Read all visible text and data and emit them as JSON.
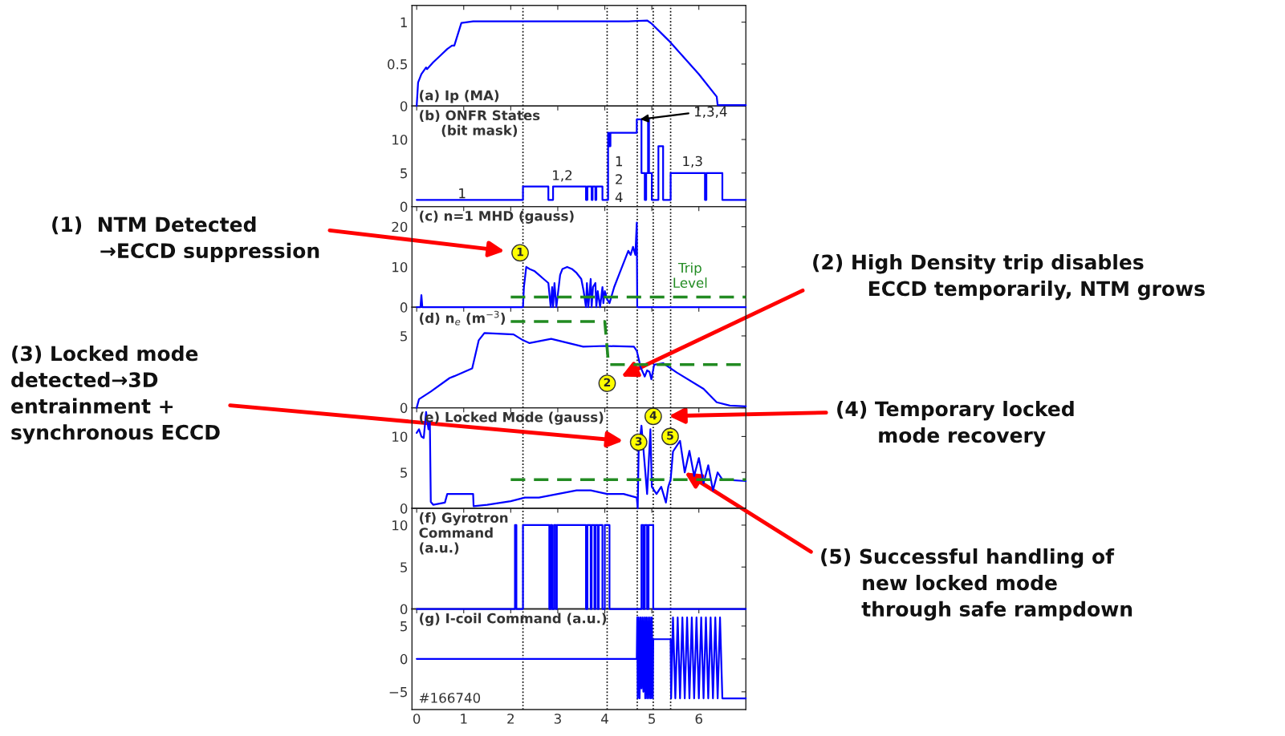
{
  "chart_data": [
    {
      "type": "line",
      "title": "(a) Ip (MA)",
      "xlim": [
        -0.1,
        7
      ],
      "xticks": [
        0,
        1,
        2,
        3,
        4,
        5,
        6
      ],
      "ylim": [
        0,
        1.2
      ],
      "yticks": [
        0,
        0.5,
        1
      ],
      "tick_labels": "y",
      "series": [
        {
          "color": "#0000ff",
          "x": [
            0,
            0.03,
            0.1,
            0.2,
            0.22,
            0.35,
            0.5,
            0.65,
            0.75,
            0.8,
            0.95,
            1.2,
            2.0,
            3.0,
            4.0,
            4.5,
            4.9,
            5.0,
            5.36,
            6.0,
            6.38,
            6.4,
            6.5,
            7.0
          ],
          "values": [
            0,
            0.28,
            0.38,
            0.46,
            0.44,
            0.52,
            0.6,
            0.68,
            0.72,
            0.72,
            0.99,
            1.01,
            1.01,
            1.01,
            1.01,
            1.01,
            1.02,
            0.98,
            0.78,
            0.38,
            0.11,
            0.01,
            0.01,
            0.01
          ]
        }
      ],
      "ref_lines": [
        {
          "axis": "x",
          "value": 2.26,
          "color": "#000000",
          "line_style": "dotted"
        },
        {
          "axis": "x",
          "value": 4.05,
          "color": "#000000",
          "line_style": "dotted"
        },
        {
          "axis": "x",
          "value": 4.69,
          "color": "#000000",
          "line_style": "dotted"
        },
        {
          "axis": "x",
          "value": 5.03,
          "color": "#000000",
          "line_style": "dotted"
        },
        {
          "axis": "x",
          "value": 5.4,
          "color": "#000000",
          "line_style": "dotted"
        }
      ]
    },
    {
      "type": "line",
      "title": "(b) ONFR States\n(bit mask)",
      "xlim": [
        -0.1,
        7
      ],
      "xticks": [
        0,
        1,
        2,
        3,
        4,
        5,
        6
      ],
      "ylim": [
        0,
        15
      ],
      "yticks": [
        0,
        5,
        10
      ],
      "tick_labels": "y",
      "series": [
        {
          "type": "step",
          "color": "#0000ff",
          "x": [
            0,
            2.26,
            2.8,
            2.9,
            3.6,
            3.63,
            3.72,
            3.74,
            3.8,
            3.82,
            3.95,
            4.07,
            4.09,
            4.12,
            4.68,
            4.78,
            4.85,
            4.88,
            4.92,
            4.94,
            4.97,
            5.0,
            5.14,
            5.24,
            5.4,
            6.13,
            6.16,
            6.5,
            7.0
          ],
          "values": [
            1,
            3,
            1,
            3,
            1,
            3,
            1,
            3,
            1,
            3,
            1,
            11,
            9,
            11,
            13,
            5,
            1,
            5,
            13,
            5,
            5,
            1,
            9,
            1,
            5,
            1,
            5,
            1,
            1
          ]
        }
      ],
      "ref_lines": [
        {
          "axis": "x",
          "value": 2.26,
          "color": "#000000",
          "line_style": "dotted"
        },
        {
          "axis": "x",
          "value": 4.05,
          "color": "#000000",
          "line_style": "dotted"
        },
        {
          "axis": "x",
          "value": 4.69,
          "color": "#000000",
          "line_style": "dotted"
        },
        {
          "axis": "x",
          "value": 5.03,
          "color": "#000000",
          "line_style": "dotted"
        },
        {
          "axis": "x",
          "value": 5.4,
          "color": "#000000",
          "line_style": "dotted"
        }
      ],
      "annotations": [
        "1",
        "1,2",
        "1\n2\n4",
        "1,3",
        {
          "text": "1,3,4",
          "x": 4.75,
          "y": 13
        }
      ]
    },
    {
      "type": "line",
      "title": "(c) n=1 MHD (gauss)",
      "xlim": [
        -0.1,
        7
      ],
      "xticks": [
        0,
        1,
        2,
        3,
        4,
        5,
        6
      ],
      "ylim": [
        0,
        25
      ],
      "yticks": [
        0,
        10,
        20
      ],
      "tick_labels": "y",
      "series": [
        {
          "color": "#0000ff",
          "x": [
            0,
            0.08,
            0.1,
            0.12,
            0.14,
            2.26,
            2.28,
            2.33,
            2.4,
            2.5,
            2.6,
            2.7,
            2.8,
            2.85,
            2.88,
            2.9,
            2.93,
            2.97,
            3.05,
            3.1,
            3.2,
            3.3,
            3.4,
            3.5,
            3.55,
            3.6,
            3.62,
            3.65,
            3.7,
            3.72,
            3.75,
            3.8,
            3.82,
            3.85,
            3.9,
            3.95,
            3.97,
            4.0,
            4.05,
            4.1,
            4.2,
            4.3,
            4.4,
            4.5,
            4.55,
            4.6,
            4.65,
            4.68,
            4.69,
            4.7,
            7.0
          ],
          "values": [
            0,
            0,
            3,
            0,
            0,
            0,
            5,
            10,
            9.5,
            9,
            8,
            7,
            6,
            0,
            5,
            0,
            6,
            0,
            8,
            9.5,
            10,
            9.5,
            8.5,
            7,
            4,
            0,
            6,
            0,
            7,
            0,
            5,
            6,
            0,
            4,
            0,
            5,
            1,
            4,
            2,
            1,
            5,
            8,
            11,
            14,
            13,
            15,
            13,
            21,
            0,
            0,
            0
          ]
        },
        {
          "name": "Trip\nLevel",
          "color": "#228b22",
          "line_style": "dashed",
          "x": [
            2.0,
            7.0
          ],
          "values": [
            2.5,
            2.5
          ]
        }
      ],
      "ref_lines": [
        {
          "axis": "x",
          "value": 2.26,
          "color": "#000000",
          "line_style": "dotted"
        },
        {
          "axis": "x",
          "value": 4.05,
          "color": "#000000",
          "line_style": "dotted"
        },
        {
          "axis": "x",
          "value": 4.69,
          "color": "#000000",
          "line_style": "dotted"
        },
        {
          "axis": "x",
          "value": 5.03,
          "color": "#000000",
          "line_style": "dotted"
        },
        {
          "axis": "x",
          "value": 5.4,
          "color": "#000000",
          "line_style": "dotted"
        }
      ],
      "annotations": [
        "(1)  NTM Detected\n       →ECCD suppression",
        {
          "text": "1",
          "x": 2.2,
          "y": 13.5
        }
      ]
    },
    {
      "type": "line",
      "title": "(d) n$_{e}$ (m$^{−3}$)",
      "xlim": [
        -0.1,
        7
      ],
      "xticks": [
        0,
        1,
        2,
        3,
        4,
        5,
        6
      ],
      "ylim": [
        0,
        7
      ],
      "yticks": [
        0,
        5
      ],
      "tick_labels": "y",
      "series": [
        {
          "color": "#0000ff",
          "x": [
            0,
            0.05,
            0.3,
            0.7,
            0.8,
            1.18,
            1.32,
            1.44,
            2.06,
            2.26,
            2.4,
            2.86,
            3.54,
            4.0,
            4.62,
            4.68,
            4.76,
            4.85,
            4.9,
            4.95,
            4.99,
            5.05,
            5.24,
            5.53,
            6.1,
            6.38,
            6.66,
            7.0
          ],
          "values": [
            0,
            0.6,
            1.13,
            2.07,
            2.2,
            2.74,
            4.7,
            5.2,
            5.1,
            4.7,
            4.5,
            4.8,
            4.25,
            4.3,
            4.25,
            3.96,
            2.83,
            2.17,
            2.6,
            2.5,
            1.98,
            3.0,
            3.1,
            2.45,
            1.32,
            0.38,
            0.15,
            0.1
          ]
        },
        {
          "color": "#228b22",
          "line_style": "dashed",
          "x": [
            2.0,
            4.0,
            4.08,
            7.0
          ],
          "values": [
            6.0,
            6.0,
            3.0,
            3.0
          ]
        }
      ],
      "ref_lines": [
        {
          "axis": "x",
          "value": 2.26,
          "color": "#000000",
          "line_style": "dotted"
        },
        {
          "axis": "x",
          "value": 4.05,
          "color": "#000000",
          "line_style": "dotted"
        },
        {
          "axis": "x",
          "value": 4.69,
          "color": "#000000",
          "line_style": "dotted"
        },
        {
          "axis": "x",
          "value": 5.03,
          "color": "#000000",
          "line_style": "dotted"
        },
        {
          "axis": "x",
          "value": 5.4,
          "color": "#000000",
          "line_style": "dotted"
        }
      ],
      "annotations": [
        "(2) High Density trip disables\n        ECCD temporarily, NTM grows",
        {
          "text": "2",
          "x": 4.05,
          "y": 1.7
        }
      ]
    },
    {
      "type": "line",
      "title": "(e) Locked Mode (gauss)",
      "xlim": [
        -0.1,
        7
      ],
      "xticks": [
        0,
        1,
        2,
        3,
        4,
        5,
        6
      ],
      "ylim": [
        0,
        14
      ],
      "yticks": [
        0,
        5,
        10
      ],
      "tick_labels": "y",
      "series": [
        {
          "color": "#0000ff",
          "x": [
            0,
            0.05,
            0.1,
            0.15,
            0.2,
            0.25,
            0.28,
            0.3,
            0.35,
            0.6,
            0.65,
            1.2,
            1.21,
            1.5,
            2.0,
            2.3,
            2.6,
            3.0,
            3.4,
            3.7,
            4.05,
            4.4,
            4.68,
            4.7,
            4.72,
            4.78,
            4.85,
            4.9,
            4.97,
            5.0,
            5.1,
            5.2,
            5.3,
            5.35,
            5.4,
            5.45,
            5.6,
            5.7,
            5.8,
            5.9,
            6.0,
            6.1,
            6.2,
            6.3,
            6.4,
            6.5,
            7.0
          ],
          "values": [
            10.5,
            11,
            10,
            9.8,
            13.4,
            11,
            12,
            0.9,
            0.5,
            0.8,
            2.0,
            2.0,
            0.3,
            0.5,
            1.0,
            1.5,
            1.5,
            2.0,
            2.5,
            2.5,
            2.0,
            2.0,
            1.5,
            0,
            8.1,
            11.5,
            6,
            2,
            11,
            3,
            2,
            3,
            0.8,
            3,
            4,
            7.9,
            9.4,
            5,
            8,
            4.5,
            7,
            3.5,
            6,
            2.5,
            5,
            4,
            3.8
          ]
        },
        {
          "color": "#228b22",
          "line_style": "dashed",
          "x": [
            2.0,
            7.0
          ],
          "values": [
            4,
            4
          ]
        }
      ],
      "ref_lines": [
        {
          "axis": "x",
          "value": 2.26,
          "color": "#000000",
          "line_style": "dotted"
        },
        {
          "axis": "x",
          "value": 4.05,
          "color": "#000000",
          "line_style": "dotted"
        },
        {
          "axis": "x",
          "value": 4.69,
          "color": "#000000",
          "line_style": "dotted"
        },
        {
          "axis": "x",
          "value": 5.03,
          "color": "#000000",
          "line_style": "dotted"
        },
        {
          "axis": "x",
          "value": 5.4,
          "color": "#000000",
          "line_style": "dotted"
        }
      ],
      "annotations": [
        "(3) Locked mode\ndetected→3D\nentrainment +\nsynchronous ECCD",
        "(4) Temporary locked\n      mode recovery",
        {
          "text": "(5) Successful handling of\n      new locked mode\n      through safe rampdown",
          "x": 5.7,
          "y": 5
        },
        {
          "text": "3",
          "x": 4.72,
          "y": 9.2
        },
        {
          "text": "4",
          "x": 5.03,
          "y": 12.8
        },
        {
          "text": "5",
          "x": 5.39,
          "y": 10
        }
      ]
    },
    {
      "type": "line",
      "title": "(f) Gyrotron\nCommand\n(a.u.)",
      "xlim": [
        -0.1,
        7
      ],
      "xticks": [
        0,
        1,
        2,
        3,
        4,
        5,
        6
      ],
      "ylim": [
        0,
        12
      ],
      "yticks": [
        0,
        5,
        10
      ],
      "tick_labels": "y",
      "series": [
        {
          "type": "step",
          "color": "#0000ff",
          "x": [
            0,
            2.09,
            2.12,
            2.26,
            2.82,
            2.85,
            2.88,
            2.92,
            2.96,
            2.98,
            3.6,
            3.63,
            3.7,
            3.72,
            3.78,
            3.8,
            3.85,
            3.87,
            3.95,
            4.0,
            4.1,
            4.78,
            4.82,
            4.85,
            4.9,
            4.93,
            5.03,
            7.0
          ],
          "values": [
            0,
            10,
            0,
            10,
            0,
            10,
            0,
            10,
            0,
            10,
            0,
            10,
            0,
            10,
            0,
            10,
            0,
            10,
            0,
            10,
            0,
            10,
            0,
            10,
            0,
            10,
            0,
            0
          ]
        }
      ],
      "ref_lines": [
        {
          "axis": "x",
          "value": 2.26,
          "color": "#000000",
          "line_style": "dotted"
        },
        {
          "axis": "x",
          "value": 4.05,
          "color": "#000000",
          "line_style": "dotted"
        },
        {
          "axis": "x",
          "value": 4.69,
          "color": "#000000",
          "line_style": "dotted"
        },
        {
          "axis": "x",
          "value": 5.03,
          "color": "#000000",
          "line_style": "dotted"
        },
        {
          "axis": "x",
          "value": 5.4,
          "color": "#000000",
          "line_style": "dotted"
        }
      ]
    },
    {
      "type": "line",
      "title": "(g) I-coil Command (a.u.)",
      "xlim": [
        -0.1,
        7
      ],
      "xticks": [
        0,
        1,
        2,
        3,
        4,
        5,
        6
      ],
      "ylim": [
        -7.7,
        7.6
      ],
      "yticks": [
        {
          "value": -5,
          "label": "−5"
        },
        0,
        5
      ],
      "series": [
        {
          "color": "#0000ff",
          "x": [
            0,
            4.68,
            4.69,
            4.7,
            4.72,
            4.74,
            4.76,
            4.78,
            4.8,
            4.82,
            4.84,
            4.86,
            4.88,
            4.9,
            4.92,
            4.94,
            4.96,
            4.98,
            5.0,
            5.02,
            5.03,
            5.4,
            5.41,
            5.45,
            5.5,
            5.55,
            5.6,
            5.65,
            5.7,
            5.75,
            5.8,
            5.85,
            5.9,
            5.95,
            6.0,
            6.05,
            6.1,
            6.15,
            6.2,
            6.25,
            6.3,
            6.35,
            6.4,
            6.45,
            6.5,
            7.0
          ],
          "values": [
            0,
            0,
            6.3,
            -6,
            6.3,
            -6,
            6.3,
            -4.5,
            6.3,
            -5,
            6.3,
            -6,
            6.3,
            -6,
            6.3,
            -6,
            6.3,
            -6,
            6.3,
            -6,
            3,
            3,
            -6,
            6.3,
            -6,
            6.3,
            -6,
            6.3,
            -6,
            6.3,
            -6,
            6.3,
            -6,
            6.3,
            -6,
            6.3,
            -6,
            6.3,
            -6,
            6.3,
            -6,
            6.3,
            -6,
            6.3,
            -6,
            -6
          ]
        }
      ],
      "ref_lines": [
        {
          "axis": "x",
          "value": 2.26,
          "color": "#000000",
          "line_style": "dotted"
        },
        {
          "axis": "x",
          "value": 4.05,
          "color": "#000000",
          "line_style": "dotted"
        },
        {
          "axis": "x",
          "value": 4.69,
          "color": "#000000",
          "line_style": "dotted"
        },
        {
          "axis": "x",
          "value": 5.03,
          "color": "#000000",
          "line_style": "dotted"
        },
        {
          "axis": "x",
          "value": 5.4,
          "color": "#000000",
          "line_style": "dotted"
        }
      ],
      "annotations": [
        "#166740"
      ]
    }
  ]
}
